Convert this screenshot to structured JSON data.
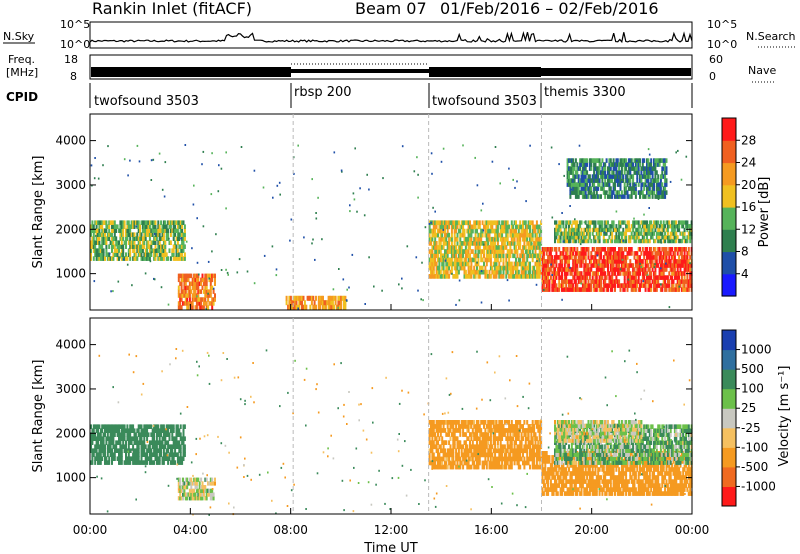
{
  "header": {
    "station": "Rankin Inlet (fitACF)",
    "beam": "Beam 07",
    "date_range": "01/Feb/2016 – 02/Feb/2016"
  },
  "status_panel": {
    "nsky_label": "N.Sky",
    "nsearch_label": "N.Search",
    "nsky_ticks": [
      "10^5",
      "10^0"
    ],
    "freq_label_line1": "Freq.",
    "freq_label_line2": "[MHz]",
    "freq_ticks": [
      "18",
      "8"
    ],
    "nave_label": "Nave",
    "nave_ticks": [
      "60",
      "0"
    ],
    "cpid_label": "CPID",
    "cpid_segments": [
      {
        "label": "twofsound 3503",
        "start_h": 0,
        "end_h": 8.1
      },
      {
        "label": "rbsp 200",
        "start_h": 8.1,
        "end_h": 13.5
      },
      {
        "label": "twofsound 3503",
        "start_h": 13.5,
        "end_h": 18
      },
      {
        "label": "themis 3300",
        "start_h": 18,
        "end_h": 24
      }
    ]
  },
  "x_axis": {
    "label": "Time UT",
    "ticks": [
      "00:00",
      "04:00",
      "08:00",
      "12:00",
      "16:00",
      "20:00",
      "00:00"
    ]
  },
  "power_panel": {
    "ylabel": "Slant Range [km]",
    "yticks": [
      "1000",
      "2000",
      "3000",
      "4000"
    ],
    "colorbar_label": "Power [dB]",
    "colorbar_ticks": [
      "4",
      "8",
      "12",
      "16",
      "20",
      "24",
      "28"
    ],
    "colors": [
      "#1a1aff",
      "#1f4fa8",
      "#2f7f4f",
      "#56b35a",
      "#f0c020",
      "#f59a20",
      "#f06020",
      "#ff1a1a"
    ]
  },
  "velocity_panel": {
    "ylabel": "Slant Range [km]",
    "yticks": [
      "1000",
      "2000",
      "3000",
      "4000"
    ],
    "colorbar_label": "Velocity [m s⁻¹]",
    "colorbar_ticks": [
      "1000",
      "500",
      "100",
      "25",
      "-25",
      "-100",
      "-500",
      "-1000"
    ],
    "colors": [
      "#1a3fb0",
      "#2f6f9f",
      "#3a8a5a",
      "#6cc04a",
      "#c8c8c0",
      "#f5c060",
      "#f59a20",
      "#f06a20",
      "#ff1a1a"
    ]
  },
  "chart_data": [
    {
      "type": "heatmap",
      "title": "Power",
      "xlabel": "Time UT",
      "ylabel": "Slant Range [km]",
      "xlim": [
        0,
        24
      ],
      "ylim": [
        180,
        4600
      ],
      "colorbar": {
        "label": "Power [dB]",
        "ticks": [
          4,
          8,
          12,
          16,
          20,
          24,
          28
        ]
      },
      "echo_regions": [
        {
          "t0": 0.0,
          "t1": 3.8,
          "r0": 1300,
          "r1": 2200,
          "power_db": 14
        },
        {
          "t0": 3.5,
          "t1": 5.0,
          "r0": 200,
          "r1": 1000,
          "power_db": 24
        },
        {
          "t0": 7.8,
          "t1": 10.2,
          "r0": 200,
          "r1": 500,
          "power_db": 22
        },
        {
          "t0": 13.5,
          "t1": 18.0,
          "r0": 900,
          "r1": 2200,
          "power_db": 18
        },
        {
          "t0": 18.0,
          "t1": 24.0,
          "r0": 600,
          "r1": 1600,
          "power_db": 28
        },
        {
          "t0": 18.5,
          "t1": 24.0,
          "r0": 1700,
          "r1": 2200,
          "power_db": 14
        },
        {
          "t0": 19.0,
          "t1": 23.0,
          "r0": 2700,
          "r1": 3600,
          "power_db": 10
        }
      ]
    },
    {
      "type": "heatmap",
      "title": "Velocity",
      "xlabel": "Time UT",
      "ylabel": "Slant Range [km]",
      "xlim": [
        0,
        24
      ],
      "ylim": [
        180,
        4600
      ],
      "colorbar": {
        "label": "Velocity [m s⁻¹]",
        "ticks": [
          1000,
          500,
          100,
          25,
          -25,
          -100,
          -500,
          -1000
        ]
      },
      "echo_regions": [
        {
          "t0": 0.0,
          "t1": 3.8,
          "r0": 1300,
          "r1": 2200,
          "velocity": 300
        },
        {
          "t0": 3.5,
          "t1": 5.0,
          "r0": 500,
          "r1": 1000,
          "velocity": 0
        },
        {
          "t0": 13.5,
          "t1": 18.0,
          "r0": 1200,
          "r1": 2300,
          "velocity": -200
        },
        {
          "t0": 18.0,
          "t1": 24.0,
          "r0": 600,
          "r1": 1600,
          "velocity": -300
        },
        {
          "t0": 18.5,
          "t1": 24.0,
          "r0": 1300,
          "r1": 2200,
          "velocity": 80
        },
        {
          "t0": 18.5,
          "t1": 22.0,
          "r0": 1800,
          "r1": 2300,
          "velocity": 0
        }
      ]
    }
  ]
}
